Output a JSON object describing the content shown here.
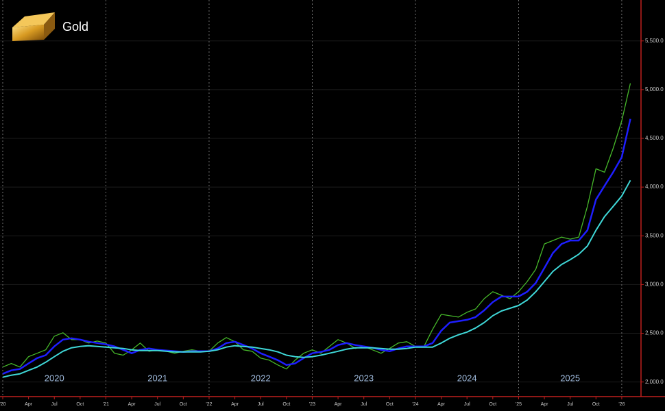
{
  "chart_data": {
    "type": "line",
    "title": "Gold",
    "x": [
      "2020-01",
      "2020-02",
      "2020-03",
      "2020-04",
      "2020-05",
      "2020-06",
      "2020-07",
      "2020-08",
      "2020-09",
      "2020-10",
      "2020-11",
      "2020-12",
      "2021-01",
      "2021-02",
      "2021-03",
      "2021-04",
      "2021-05",
      "2021-06",
      "2021-07",
      "2021-08",
      "2021-09",
      "2021-10",
      "2021-11",
      "2021-12",
      "2022-01",
      "2022-02",
      "2022-03",
      "2022-04",
      "2022-05",
      "2022-06",
      "2022-07",
      "2022-08",
      "2022-09",
      "2022-10",
      "2022-11",
      "2022-12",
      "2023-01",
      "2023-02",
      "2023-03",
      "2023-04",
      "2023-05",
      "2023-06",
      "2023-07",
      "2023-08",
      "2023-09",
      "2023-10",
      "2023-11",
      "2023-12",
      "2024-01",
      "2024-02",
      "2024-03",
      "2024-04",
      "2024-05",
      "2024-06",
      "2024-07",
      "2024-08",
      "2024-09",
      "2024-10",
      "2024-11",
      "2024-12",
      "2025-01",
      "2025-02",
      "2025-03",
      "2025-04",
      "2025-05",
      "2025-06",
      "2025-07",
      "2025-08",
      "2025-09",
      "2025-10",
      "2025-11",
      "2025-12",
      "2026-01",
      "2026-02"
    ],
    "series": [
      {
        "color": "#46b82a",
        "width": 1.3,
        "values": [
          2154,
          2190,
          2154,
          2260,
          2295,
          2330,
          2470,
          2505,
          2435,
          2435,
          2400,
          2420,
          2400,
          2295,
          2275,
          2330,
          2400,
          2315,
          2330,
          2315,
          2295,
          2315,
          2330,
          2315,
          2315,
          2400,
          2456,
          2414,
          2330,
          2315,
          2245,
          2224,
          2175,
          2133,
          2224,
          2295,
          2330,
          2295,
          2365,
          2435,
          2400,
          2344,
          2365,
          2330,
          2295,
          2344,
          2400,
          2414,
          2365,
          2365,
          2540,
          2694,
          2680,
          2666,
          2715,
          2750,
          2855,
          2926,
          2890,
          2855,
          2926,
          3031,
          3157,
          3417,
          3452,
          3487,
          3466,
          3487,
          3802,
          4188,
          4153,
          4398,
          4679,
          5065
        ]
      },
      {
        "color": "#1e1eff",
        "width": 2.5,
        "values": [
          2084,
          2119,
          2133,
          2190,
          2245,
          2275,
          2365,
          2435,
          2449,
          2435,
          2414,
          2400,
          2386,
          2365,
          2330,
          2295,
          2330,
          2344,
          2330,
          2323,
          2315,
          2309,
          2315,
          2315,
          2315,
          2344,
          2400,
          2414,
          2379,
          2344,
          2295,
          2260,
          2224,
          2175,
          2190,
          2245,
          2295,
          2309,
          2330,
          2379,
          2400,
          2379,
          2365,
          2351,
          2330,
          2315,
          2344,
          2365,
          2365,
          2365,
          2400,
          2526,
          2610,
          2624,
          2638,
          2666,
          2736,
          2820,
          2877,
          2877,
          2877,
          2926,
          3017,
          3171,
          3325,
          3417,
          3452,
          3452,
          3557,
          3872,
          4013,
          4153,
          4307,
          4700
        ]
      },
      {
        "color": "#3fd8d8",
        "width": 2,
        "values": [
          2049,
          2070,
          2084,
          2119,
          2154,
          2203,
          2260,
          2315,
          2351,
          2365,
          2372,
          2365,
          2358,
          2351,
          2344,
          2330,
          2323,
          2323,
          2323,
          2315,
          2309,
          2309,
          2309,
          2309,
          2315,
          2330,
          2358,
          2372,
          2365,
          2358,
          2344,
          2330,
          2309,
          2275,
          2260,
          2253,
          2260,
          2275,
          2295,
          2315,
          2337,
          2351,
          2351,
          2351,
          2344,
          2337,
          2337,
          2344,
          2358,
          2358,
          2358,
          2400,
          2449,
          2484,
          2512,
          2554,
          2610,
          2680,
          2729,
          2757,
          2785,
          2841,
          2926,
          3031,
          3136,
          3206,
          3255,
          3311,
          3396,
          3557,
          3697,
          3802,
          3908,
          4069
        ]
      }
    ],
    "xlim": [
      "2020-01",
      "2026-03"
    ],
    "xticks": [
      {
        "value": "2020-01",
        "label": "'20"
      },
      {
        "value": "2020-04",
        "label": "Apr"
      },
      {
        "value": "2020-07",
        "label": "Jul"
      },
      {
        "value": "2020-10",
        "label": "Oct"
      },
      {
        "value": "2021-01",
        "label": "'21"
      },
      {
        "value": "2021-04",
        "label": "Apr"
      },
      {
        "value": "2021-07",
        "label": "Jul"
      },
      {
        "value": "2021-10",
        "label": "Oct"
      },
      {
        "value": "2022-01",
        "label": "'22"
      },
      {
        "value": "2022-04",
        "label": "Apr"
      },
      {
        "value": "2022-07",
        "label": "Jul"
      },
      {
        "value": "2022-10",
        "label": "Oct"
      },
      {
        "value": "2023-01",
        "label": "'23"
      },
      {
        "value": "2023-04",
        "label": "Apr"
      },
      {
        "value": "2023-07",
        "label": "Jul"
      },
      {
        "value": "2023-10",
        "label": "Oct"
      },
      {
        "value": "2024-01",
        "label": "'24"
      },
      {
        "value": "2024-04",
        "label": "Apr"
      },
      {
        "value": "2024-07",
        "label": "Jul"
      },
      {
        "value": "2024-10",
        "label": "Oct"
      },
      {
        "value": "2025-01",
        "label": "'25"
      },
      {
        "value": "2025-04",
        "label": "Apr"
      },
      {
        "value": "2025-07",
        "label": "Jul"
      },
      {
        "value": "2025-10",
        "label": "Oct"
      },
      {
        "value": "2026-01",
        "label": "'26"
      }
    ],
    "year_labels": [
      {
        "value": "2020-07",
        "label": "2020"
      },
      {
        "value": "2021-07",
        "label": "2021"
      },
      {
        "value": "2022-07",
        "label": "2022"
      },
      {
        "value": "2023-07",
        "label": "2023"
      },
      {
        "value": "2024-07",
        "label": "2024"
      },
      {
        "value": "2025-07",
        "label": "2025"
      }
    ],
    "ylim": [
      1850,
      5920
    ],
    "yticks": [
      {
        "value": 2000,
        "label": "2,000.0"
      },
      {
        "value": 2500,
        "label": "2,500.0"
      },
      {
        "value": 3000,
        "label": "3,000.0"
      },
      {
        "value": 3500,
        "label": "3,500.0"
      },
      {
        "value": 4000,
        "label": "4,000.0"
      },
      {
        "value": 4500,
        "label": "4,500.0"
      },
      {
        "value": 5000,
        "label": "5,000.0"
      },
      {
        "value": 5500,
        "label": "5,500.0"
      }
    ],
    "grid": true
  }
}
